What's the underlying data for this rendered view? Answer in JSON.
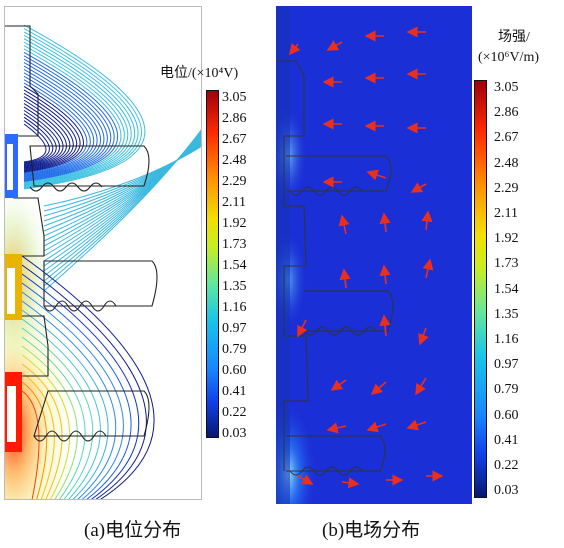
{
  "left_panel": {
    "colorbar_title": "电位/(×10⁴V)",
    "colorbar_ticks": [
      "3.05",
      "2.86",
      "2.67",
      "2.48",
      "2.29",
      "2.11",
      "1.92",
      "1.73",
      "1.54",
      "1.35",
      "1.16",
      "0.97",
      "0.79",
      "0.60",
      "0.41",
      "0.22",
      "0.03"
    ],
    "caption": "(a)电位分布"
  },
  "right_panel": {
    "colorbar_title_line1": "场强/",
    "colorbar_title_line2": "(×10⁶V/m)",
    "colorbar_ticks": [
      "3.05",
      "2.86",
      "2.67",
      "2.48",
      "2.29",
      "2.11",
      "1.92",
      "1.73",
      "1.54",
      "1.35",
      "1.16",
      "0.97",
      "0.79",
      "0.60",
      "0.41",
      "0.22",
      "0.03"
    ],
    "caption": "(b)电场分布"
  },
  "colors": {
    "field_background": "#1a2fd6",
    "arrow": "#e8301c",
    "outline": "#333333"
  }
}
